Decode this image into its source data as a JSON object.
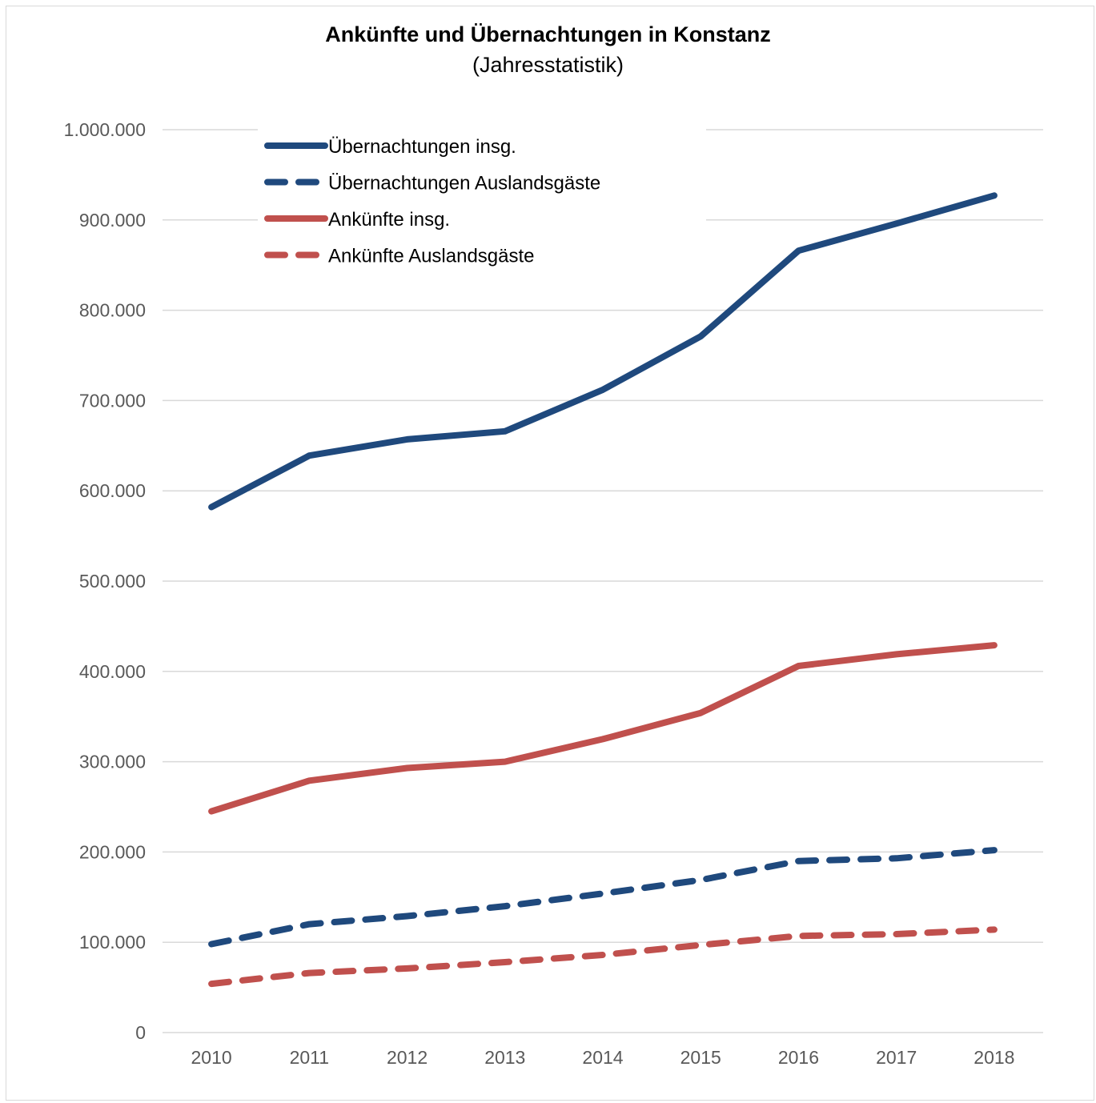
{
  "chart_data": {
    "type": "line",
    "title": "Ankünfte und Übernachtungen in Konstanz",
    "subtitle": "(Jahresstatistik)",
    "xlabel": "",
    "ylabel": "",
    "categories": [
      "2010",
      "2011",
      "2012",
      "2013",
      "2014",
      "2015",
      "2016",
      "2017",
      "2018"
    ],
    "ylim": [
      0,
      1000000
    ],
    "yticks": [
      0,
      100000,
      200000,
      300000,
      400000,
      500000,
      600000,
      700000,
      800000,
      900000,
      1000000
    ],
    "ytick_labels": [
      "0",
      "100.000",
      "200.000",
      "300.000",
      "400.000",
      "500.000",
      "600.000",
      "700.000",
      "800.000",
      "900.000",
      "1.000.000"
    ],
    "grid": true,
    "legend_position": "top-left",
    "series": [
      {
        "name": "Übernachtungen insg.",
        "color": "#1f497d",
        "style": "solid",
        "values": [
          582000,
          639000,
          657000,
          666000,
          712000,
          771000,
          866000,
          896000,
          927000
        ]
      },
      {
        "name": "Übernachtungen Auslandsgäste",
        "color": "#1f497d",
        "style": "dashed",
        "values": [
          98000,
          120000,
          129000,
          140000,
          154000,
          169000,
          190000,
          193000,
          202000
        ]
      },
      {
        "name": "Ankünfte insg.",
        "color": "#c0504d",
        "style": "solid",
        "values": [
          245000,
          279000,
          293000,
          300000,
          325000,
          354000,
          406000,
          419000,
          429000
        ]
      },
      {
        "name": "Ankünfte Auslandsgäste",
        "color": "#c0504d",
        "style": "dashed",
        "values": [
          54000,
          66000,
          71000,
          78000,
          86000,
          97000,
          107000,
          109000,
          114000
        ]
      }
    ]
  }
}
